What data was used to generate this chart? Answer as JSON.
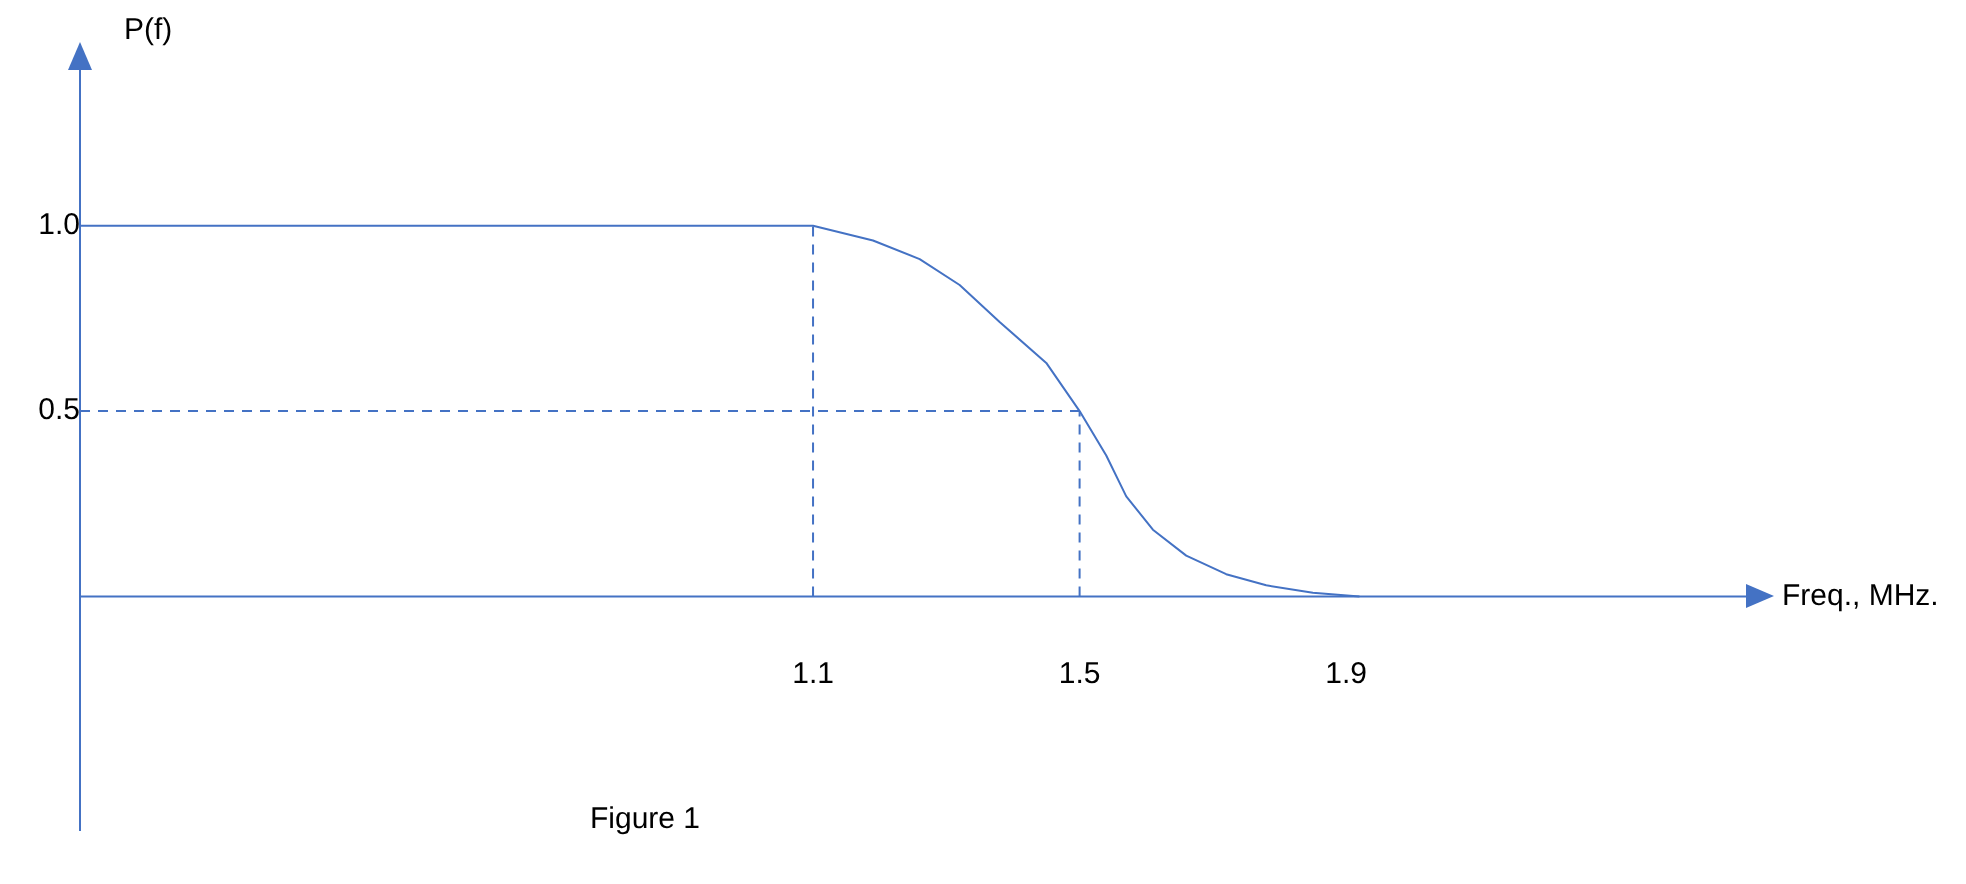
{
  "chart_data": {
    "type": "line",
    "xlabel": "Freq., MHz.",
    "ylabel": "P(f)",
    "annotations": [
      "Figure 1"
    ],
    "xlim": [
      0,
      2.5
    ],
    "ylim": [
      -0.63,
      1.42
    ],
    "xticks": [
      1.1,
      1.5,
      1.9
    ],
    "yticks": [
      0.5,
      {
        "value": 1,
        "label": "1.0"
      }
    ],
    "ref_lines": [
      {
        "axis": "y",
        "value": 0,
        "color": "#4472c4"
      }
    ],
    "grid": false,
    "legend": false,
    "marker": "none",
    "series": [
      {
        "color": "#4472c4",
        "x": [
          0,
          1.1,
          1.19,
          1.26,
          1.32,
          1.38,
          1.45,
          1.5,
          1.54,
          1.57,
          1.61,
          1.66,
          1.72,
          1.78,
          1.85,
          1.92
        ],
        "values": [
          1,
          1,
          0.96,
          0.91,
          0.84,
          0.74,
          0.63,
          0.5,
          0.38,
          0.27,
          0.18,
          0.11,
          0.06,
          0.03,
          0.01,
          0
        ]
      },
      {
        "color": "#4472c4",
        "line_style": "dashed",
        "x": [
          0,
          1.5
        ],
        "values": [
          0.5,
          0.5
        ]
      },
      {
        "color": "#4472c4",
        "line_style": "dashed",
        "x": [
          1.1,
          1.1
        ],
        "values": [
          0,
          1
        ]
      },
      {
        "color": "#4472c4",
        "line_style": "dashed",
        "x": [
          1.5,
          1.5
        ],
        "values": [
          0,
          0.5
        ]
      }
    ]
  }
}
